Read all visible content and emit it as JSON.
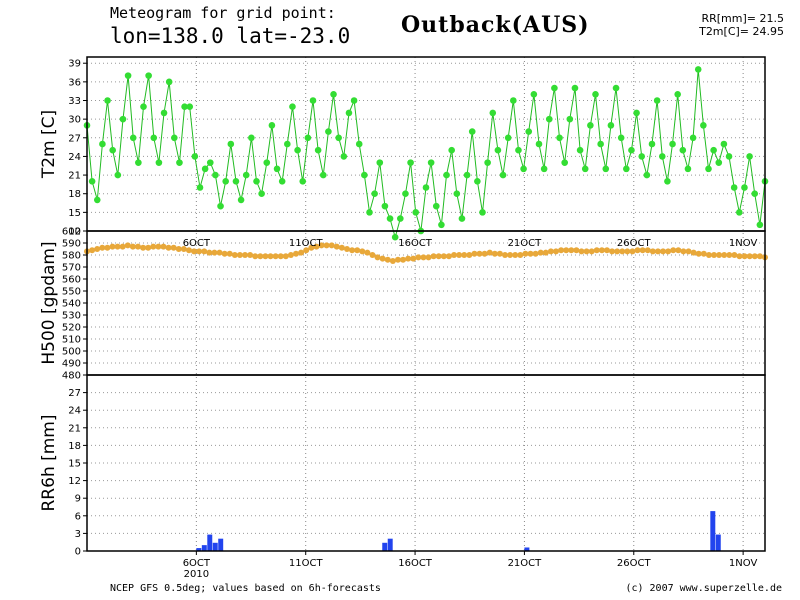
{
  "header": {
    "title_line1": "Meteogram for grid point:",
    "title_line2": "lon=138.0  lat=-23.0",
    "location": "Outback(AUS)",
    "summary_rr": "RR[mm]= 21.5",
    "summary_t2m": "T2m[C]= 24.95"
  },
  "footer": {
    "source": "NCEP GFS 0.5deg; values based on 6h-forecasts",
    "copyright": "(c) 2007 www.superzelle.de"
  },
  "colors": {
    "t2m": "#22bb22",
    "t2m_dot": "#33dd33",
    "h500": "#e8a83a",
    "rr": "#2244ee"
  },
  "chart_data": [
    {
      "type": "line",
      "title": "",
      "ylabel": "T2m [C]",
      "ylim": [
        12,
        40
      ],
      "yticks": [
        12,
        15,
        18,
        21,
        24,
        27,
        30,
        33,
        36,
        39
      ],
      "xlim": [
        1,
        32
      ],
      "xticks": [
        6,
        11,
        16,
        21,
        26,
        31
      ],
      "xtick_labels": [
        "6OCT",
        "11OCT",
        "16OCT",
        "21OCT",
        "26OCT",
        "1NOV"
      ],
      "grid": true,
      "series": [
        {
          "values": [
            29,
            20,
            17,
            26,
            33,
            25,
            21,
            30,
            37,
            27,
            23,
            32,
            37,
            27,
            23,
            31,
            36,
            27,
            23,
            32,
            32,
            24,
            19,
            22,
            23,
            21,
            16,
            20,
            26,
            20,
            17,
            21,
            27,
            20,
            18,
            23,
            29,
            22,
            20,
            26,
            32,
            25,
            20,
            27,
            33,
            25,
            21,
            28,
            34,
            27,
            24,
            31,
            33,
            26,
            21,
            15,
            18,
            23,
            16,
            14,
            11,
            14,
            18,
            23,
            15,
            12,
            19,
            23,
            16,
            13,
            21,
            25,
            18,
            14,
            21,
            28,
            20,
            15,
            23,
            31,
            25,
            21,
            27,
            33,
            25,
            22,
            28,
            34,
            26,
            22,
            30,
            35,
            27,
            23,
            30,
            35,
            25,
            22,
            29,
            34,
            26,
            22,
            29,
            35,
            27,
            22,
            25,
            31,
            24,
            21,
            26,
            33,
            24,
            20,
            26,
            34,
            25,
            22,
            27,
            38,
            29,
            22,
            25,
            23,
            26,
            24,
            19,
            15,
            19,
            24,
            18,
            13,
            20
          ]
        }
      ]
    },
    {
      "type": "line",
      "title": "",
      "ylabel": "H500 [gpdam]",
      "ylim": [
        480,
        600
      ],
      "yticks": [
        480,
        490,
        500,
        510,
        520,
        530,
        540,
        550,
        560,
        570,
        580,
        590,
        600
      ],
      "xlim": [
        1,
        32
      ],
      "grid": true,
      "series": [
        {
          "values": [
            583,
            584,
            585,
            586,
            586,
            587,
            587,
            587,
            588,
            587,
            587,
            586,
            586,
            587,
            587,
            587,
            586,
            586,
            585,
            585,
            584,
            583,
            583,
            583,
            582,
            582,
            582,
            581,
            581,
            580,
            580,
            580,
            580,
            579,
            579,
            579,
            579,
            579,
            579,
            579,
            580,
            581,
            582,
            584,
            586,
            587,
            588,
            588,
            588,
            587,
            586,
            585,
            584,
            584,
            583,
            582,
            580,
            578,
            577,
            576,
            575,
            576,
            576,
            577,
            577,
            578,
            578,
            578,
            579,
            579,
            579,
            579,
            580,
            580,
            580,
            580,
            581,
            581,
            581,
            582,
            581,
            581,
            580,
            580,
            580,
            580,
            581,
            581,
            581,
            582,
            582,
            583,
            583,
            584,
            584,
            584,
            584,
            583,
            583,
            583,
            584,
            584,
            584,
            583,
            583,
            583,
            583,
            583,
            584,
            584,
            584,
            583,
            583,
            583,
            583,
            584,
            584,
            583,
            583,
            582,
            581,
            581,
            580,
            580,
            580,
            580,
            580,
            580,
            579,
            579,
            579,
            579,
            579,
            578
          ]
        }
      ]
    },
    {
      "type": "bar",
      "title": "",
      "ylabel": "RR6h [mm]",
      "ylim": [
        0,
        30
      ],
      "yticks": [
        0,
        3,
        6,
        9,
        12,
        15,
        18,
        21,
        24,
        27
      ],
      "xlim": [
        1,
        32
      ],
      "xticks": [
        6,
        11,
        16,
        21,
        26,
        31
      ],
      "xtick_labels": [
        "6OCT",
        "11OCT",
        "16OCT",
        "21OCT",
        "26OCT",
        "1NOV"
      ],
      "xtick_sublabel": "2010",
      "grid": true,
      "bars": [
        {
          "x": 6.0,
          "value": 0.5
        },
        {
          "x": 6.25,
          "value": 1.0
        },
        {
          "x": 6.5,
          "value": 2.8
        },
        {
          "x": 6.75,
          "value": 1.4
        },
        {
          "x": 7.0,
          "value": 2.1
        },
        {
          "x": 14.5,
          "value": 1.4
        },
        {
          "x": 14.75,
          "value": 2.1
        },
        {
          "x": 21.0,
          "value": 0.6
        },
        {
          "x": 29.5,
          "value": 6.8
        },
        {
          "x": 29.75,
          "value": 2.8
        }
      ]
    }
  ]
}
